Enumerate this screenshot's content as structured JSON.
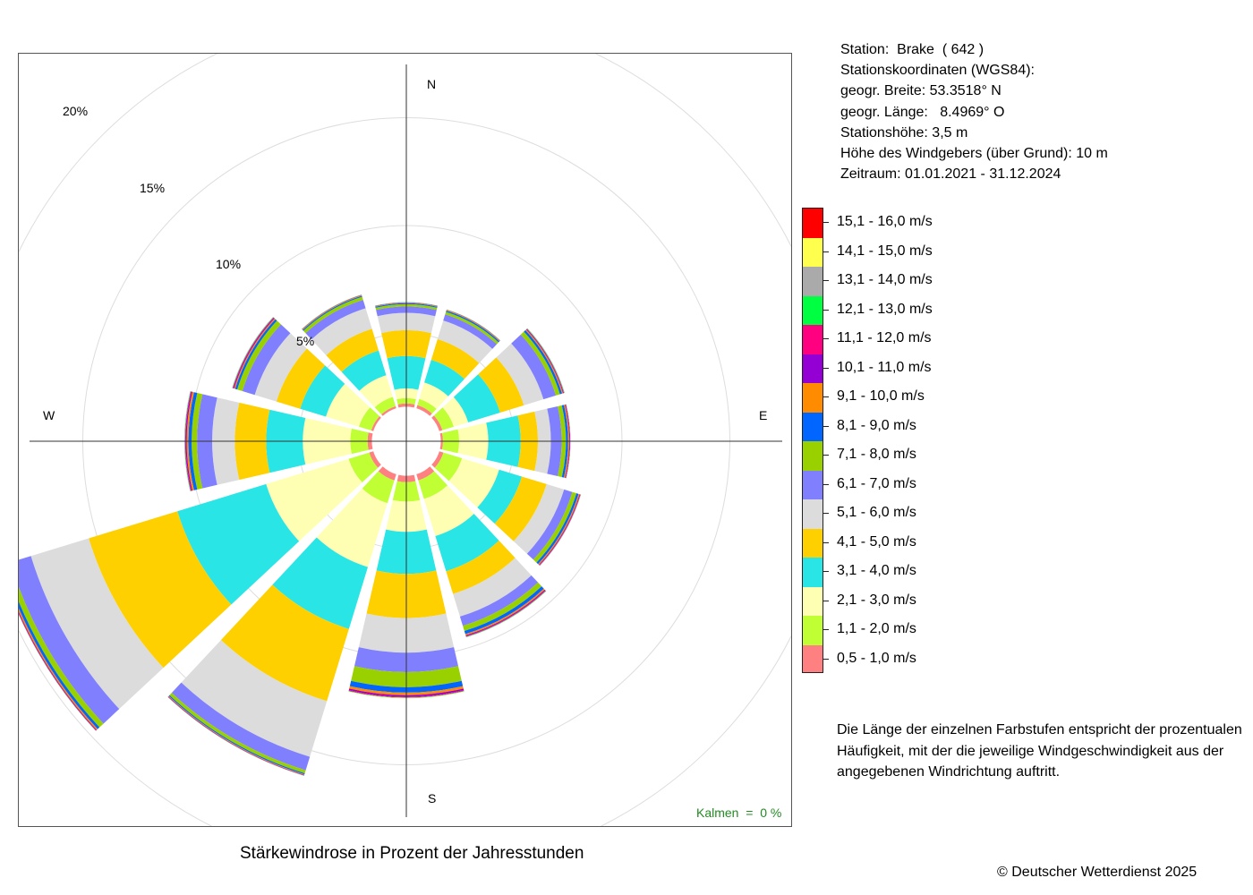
{
  "station": {
    "lines": [
      "Station:  Brake  ( 642 )",
      "Stationskoordinaten (WGS84):",
      "geogr. Breite: 53.3518° N",
      "geogr. Länge:   8.4969° O",
      "Stationshöhe: 3,5 m",
      "Höhe des Windgebers (über Grund): 10 m",
      "Zeitraum: 01.01.2021 - 31.12.2024"
    ]
  },
  "compass": {
    "n": "N",
    "e": "E",
    "s": "S",
    "w": "W"
  },
  "calms": "Kalmen  =  0 %",
  "explanation": "Die Länge der einzelnen Farbstufen entspricht der prozentualen Häufigkeit, mit der die jeweilige Windgeschwindigkeit aus der angegebenen Windrichtung auftritt.",
  "copyright": "© Deutscher Wetterdienst  2025",
  "colors": {
    "frame": "#555555",
    "axis": "#333333",
    "grid": "#dddddd",
    "calms_text": "#228B22"
  },
  "chart_data": {
    "type": "windrose",
    "title": "Stärkewindrose in Prozent der Jahresstunden",
    "ring_labels": [
      "5%",
      "10%",
      "15%",
      "20%"
    ],
    "ring_values": [
      5,
      10,
      15,
      20
    ],
    "calms_percent": 0,
    "inner_hole_percent": 1.6,
    "direction_step_deg": 30,
    "speed_classes": [
      {
        "label": "0,5 - 1,0 m/s",
        "color": "#FF8080"
      },
      {
        "label": "1,1 - 2,0 m/s",
        "color": "#BFFF33"
      },
      {
        "label": "2,1 - 3,0 m/s",
        "color": "#FFFFB3"
      },
      {
        "label": "3,1 - 4,0 m/s",
        "color": "#2AE5E5"
      },
      {
        "label": "4,1 - 5,0 m/s",
        "color": "#FFD000"
      },
      {
        "label": "5,1 - 6,0 m/s",
        "color": "#DCDCDC"
      },
      {
        "label": "6,1 - 7,0 m/s",
        "color": "#8080FF"
      },
      {
        "label": "7,1 - 8,0 m/s",
        "color": "#99D100"
      },
      {
        "label": "8,1 - 9,0 m/s",
        "color": "#0066FF"
      },
      {
        "label": "9,1 - 10,0 m/s",
        "color": "#FF8C00"
      },
      {
        "label": "10,1 - 11,0 m/s",
        "color": "#9400D3"
      },
      {
        "label": "11,1 - 12,0 m/s",
        "color": "#FF0080"
      },
      {
        "label": "12,1 - 13,0 m/s",
        "color": "#00FF40"
      },
      {
        "label": "13,1 - 14,0 m/s",
        "color": "#AAAAAA"
      },
      {
        "label": "14,1 - 15,0 m/s",
        "color": "#FFFF4D"
      },
      {
        "label": "15,1 - 16,0 m/s",
        "color": "#FF0000"
      }
    ],
    "series": [
      {
        "direction": 0,
        "values": [
          0.15,
          0.25,
          0.45,
          1.5,
          1.2,
          0.8,
          0.3,
          0.1,
          0.05,
          0.02,
          0.01,
          0.01,
          0.01,
          0,
          0,
          0
        ]
      },
      {
        "direction": 30,
        "values": [
          0.15,
          0.3,
          0.8,
          1.1,
          1.0,
          0.9,
          0.3,
          0.12,
          0.06,
          0.03,
          0.01,
          0.01,
          0.01,
          0,
          0,
          0
        ]
      },
      {
        "direction": 60,
        "values": [
          0.15,
          0.55,
          0.7,
          1.55,
          1.15,
          0.95,
          0.6,
          0.2,
          0.1,
          0.05,
          0.03,
          0.02,
          0.02,
          0.01,
          0,
          0
        ]
      },
      {
        "direction": 90,
        "values": [
          0.1,
          0.75,
          1.35,
          1.5,
          0.8,
          0.6,
          0.5,
          0.2,
          0.1,
          0.05,
          0.03,
          0.02,
          0.01,
          0,
          0,
          0
        ]
      },
      {
        "direction": 120,
        "values": [
          0.2,
          0.9,
          1.8,
          1.1,
          1.2,
          0.85,
          0.4,
          0.2,
          0.1,
          0.05,
          0.03,
          0.02,
          0.01,
          0.01,
          0,
          0
        ]
      },
      {
        "direction": 150,
        "values": [
          0.3,
          0.9,
          1.8,
          1.7,
          1.1,
          1.1,
          0.45,
          0.25,
          0.15,
          0.06,
          0.04,
          0.03,
          0.02,
          0.01,
          0,
          0
        ]
      },
      {
        "direction": 180,
        "values": [
          0.3,
          0.9,
          1.4,
          1.95,
          2.05,
          1.6,
          0.9,
          0.7,
          0.25,
          0.12,
          0.07,
          0.04,
          0.02,
          0.01,
          0.01,
          0
        ]
      },
      {
        "direction": 210,
        "values": [
          0.3,
          1.1,
          3.1,
          3.0,
          3.5,
          2.7,
          0.65,
          0.15,
          0.05,
          0.03,
          0.02,
          0.01,
          0.01,
          0,
          0,
          0
        ]
      },
      {
        "direction": 240,
        "values": [
          0.2,
          1.0,
          4.0,
          4.3,
          4.3,
          2.8,
          1.0,
          0.25,
          0.12,
          0.06,
          0.03,
          0.02,
          0.01,
          0,
          0,
          0
        ]
      },
      {
        "direction": 270,
        "values": [
          0.2,
          0.8,
          2.2,
          1.7,
          1.45,
          1.05,
          0.7,
          0.25,
          0.15,
          0.08,
          0.05,
          0.03,
          0.02,
          0.01,
          0,
          0
        ]
      },
      {
        "direction": 300,
        "values": [
          0.1,
          0.6,
          1.6,
          1.25,
          1.15,
          1.05,
          0.6,
          0.25,
          0.1,
          0.05,
          0.04,
          0.03,
          0.02,
          0.01,
          0,
          0
        ]
      },
      {
        "direction": 330,
        "values": [
          0.1,
          0.45,
          1.05,
          1.2,
          1.05,
          1.0,
          0.4,
          0.15,
          0.05,
          0.03,
          0.01,
          0.01,
          0.01,
          0,
          0,
          0
        ]
      }
    ]
  }
}
